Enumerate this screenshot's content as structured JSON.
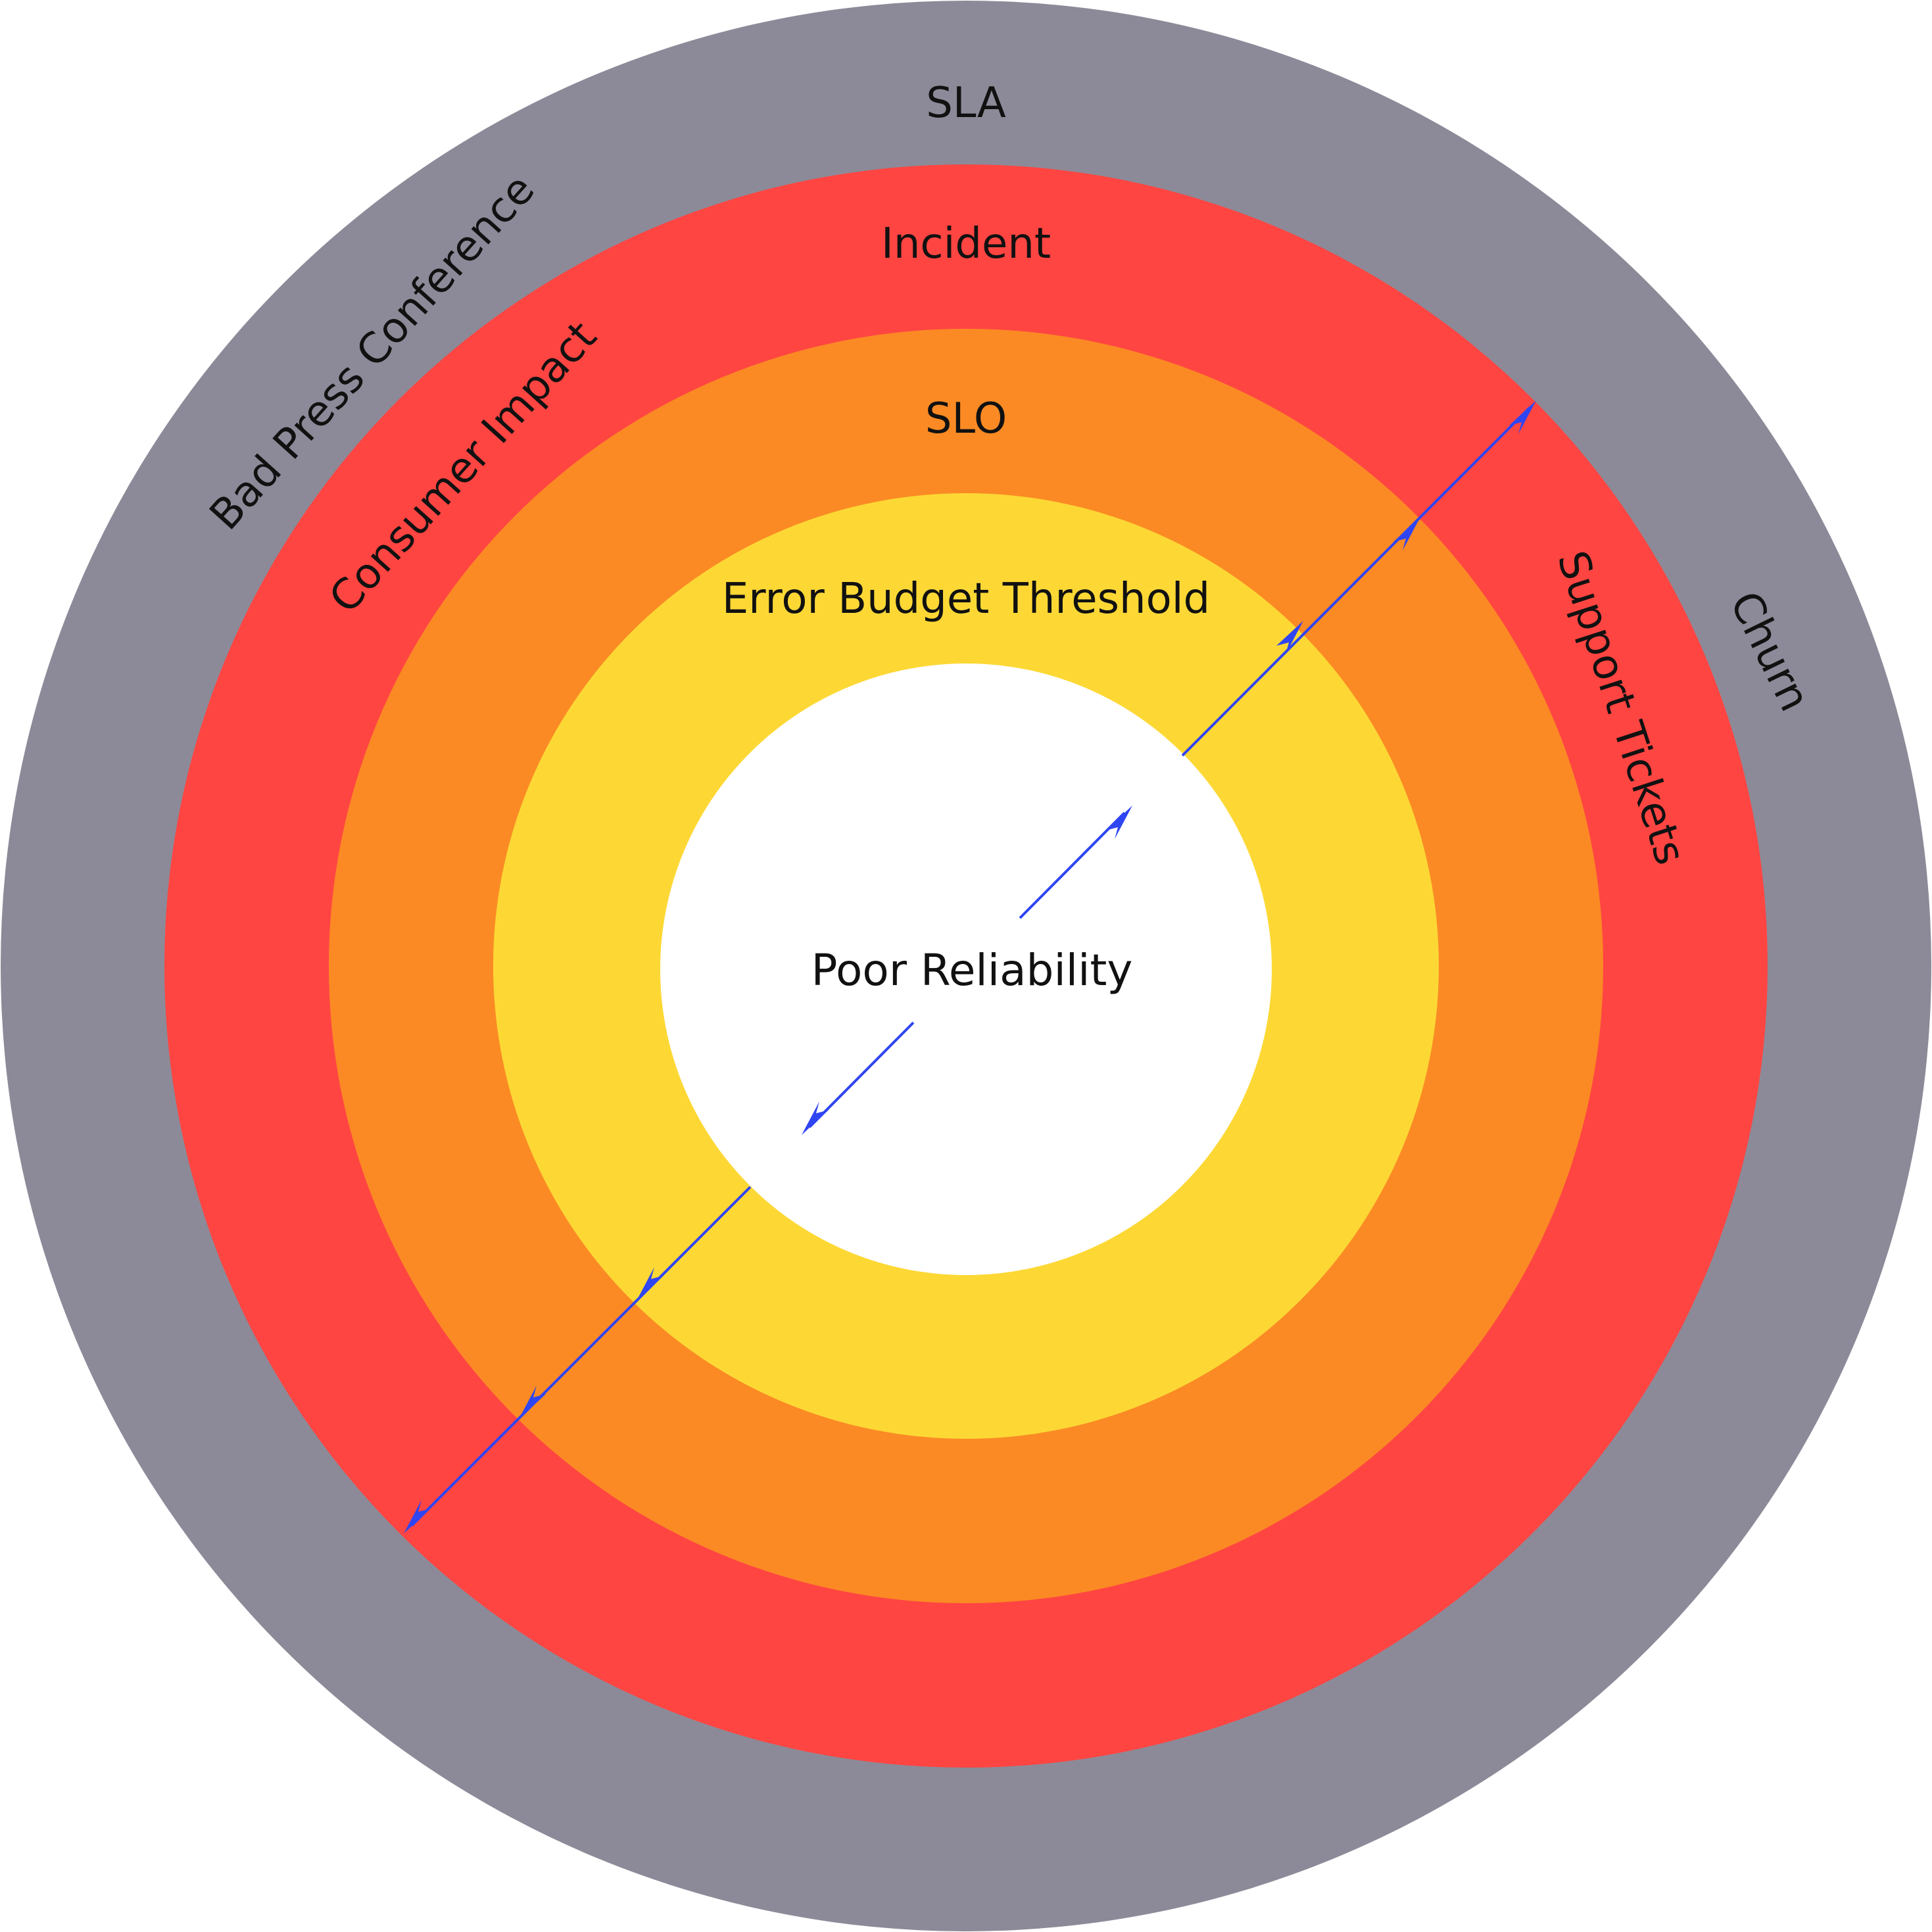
{
  "rings": [
    {
      "name": "SLA",
      "color": "#8c8a98"
    },
    {
      "name": "Incident",
      "color": "#ff4542"
    },
    {
      "name": "SLO",
      "color": "#fb8a24"
    },
    {
      "name": "Error Budget Threshold",
      "color": "#fdd835"
    },
    {
      "name": "Poor Reliability",
      "color": "#ffffff"
    }
  ],
  "side_labels": {
    "bad_press": "Bad Press Conference",
    "consumer_impact": "Consumer Impact",
    "support_tickets": "Support Tickets",
    "churn": "Churn"
  },
  "arrow_color": "#2f45f2"
}
